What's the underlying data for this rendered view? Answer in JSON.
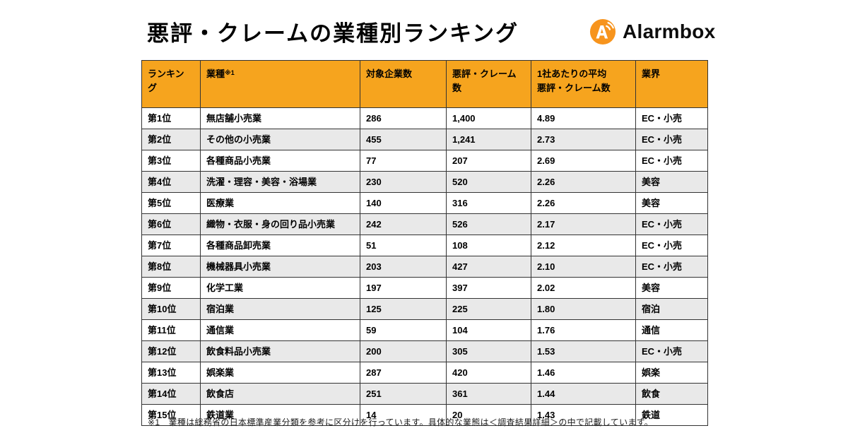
{
  "page": {
    "title": "悪評・クレームの業種別ランキング",
    "footnote": "※1　業種は総務省の日本標準産業分類を参考に区分けを行っています。具体的な業態は＜調査結果詳細＞の中で記載しています。"
  },
  "logo": {
    "text": "Alarmbox",
    "icon_color": "#F7941D"
  },
  "colors": {
    "header_bg": "#F6A41E",
    "row_alt_bg": "#E9E9E9",
    "border": "#333333"
  },
  "chart_data": {
    "type": "table",
    "title": "悪評・クレームの業種別ランキング",
    "columns": [
      {
        "label": "ランキング",
        "sup": ""
      },
      {
        "label": "業種",
        "sup": "※1"
      },
      {
        "label": "対象企業数",
        "sup": ""
      },
      {
        "label": "悪評・クレーム数",
        "sup": ""
      },
      {
        "label": "1社あたりの平均\n悪評・クレーム数",
        "sup": ""
      },
      {
        "label": "業界",
        "sup": ""
      }
    ],
    "rows": [
      [
        "第1位",
        "無店舗小売業",
        "286",
        "1,400",
        "4.89",
        "EC・小売"
      ],
      [
        "第2位",
        "その他の小売業",
        "455",
        "1,241",
        "2.73",
        "EC・小売"
      ],
      [
        "第3位",
        "各種商品小売業",
        "77",
        "207",
        "2.69",
        "EC・小売"
      ],
      [
        "第4位",
        "洗濯・理容・美容・浴場業",
        "230",
        "520",
        "2.26",
        "美容"
      ],
      [
        "第5位",
        "医療業",
        "140",
        "316",
        "2.26",
        "美容"
      ],
      [
        "第6位",
        "織物・衣服・身の回り品小売業",
        "242",
        "526",
        "2.17",
        "EC・小売"
      ],
      [
        "第7位",
        "各種商品卸売業",
        "51",
        "108",
        "2.12",
        "EC・小売"
      ],
      [
        "第8位",
        "機械器具小売業",
        "203",
        "427",
        "2.10",
        "EC・小売"
      ],
      [
        "第9位",
        "化学工業",
        "197",
        "397",
        "2.02",
        "美容"
      ],
      [
        "第10位",
        "宿泊業",
        "125",
        "225",
        "1.80",
        "宿泊"
      ],
      [
        "第11位",
        "通信業",
        "59",
        "104",
        "1.76",
        "通信"
      ],
      [
        "第12位",
        "飲食料品小売業",
        "200",
        "305",
        "1.53",
        "EC・小売"
      ],
      [
        "第13位",
        "娯楽業",
        "287",
        "420",
        "1.46",
        "娯楽"
      ],
      [
        "第14位",
        "飲食店",
        "251",
        "361",
        "1.44",
        "飲食"
      ],
      [
        "第15位",
        "鉄道業",
        "14",
        "20",
        "1.43",
        "鉄道"
      ]
    ]
  }
}
